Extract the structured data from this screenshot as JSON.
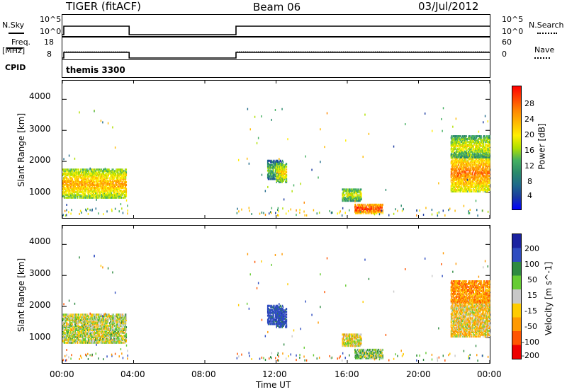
{
  "header": {
    "title": "TIGER (fitACF)",
    "beam": "Beam 06",
    "date": "03/Jul/2012"
  },
  "top_panels": {
    "nsky_label": "N.Sky",
    "nsky_ticks": [
      "10^5",
      "10^0"
    ],
    "nsearch_label": "N.Search",
    "nsearch_ticks": [
      "10^5",
      "10^0"
    ],
    "freq_label_1": "Freq.",
    "freq_label_2": "[MHz]",
    "freq_ticks": [
      "18",
      "8"
    ],
    "nave_label": "Nave",
    "nave_ticks": [
      "60",
      "0"
    ],
    "cpid_label": "CPID",
    "cpid_text": "themis 3300"
  },
  "power_panel": {
    "ylabel": "Slant Range [km]",
    "yticks": [
      "4000",
      "3000",
      "2000",
      "1000"
    ],
    "cbar_label": "Power [dB]",
    "cbar_ticks": [
      "28",
      "24",
      "20",
      "16",
      "12",
      "8",
      "4"
    ],
    "cbar_colors": [
      "#ff0000",
      "#ff4400",
      "#ff8800",
      "#ffbb00",
      "#ffee00",
      "#b0e000",
      "#44b060",
      "#2a8a6a",
      "#1f6a8a",
      "#1a3aa0",
      "#0000ff"
    ]
  },
  "velocity_panel": {
    "ylabel": "Slant Range [km]",
    "yticks": [
      "4000",
      "3000",
      "2000",
      "1000"
    ],
    "cbar_label": "Velocity [m s^-1]",
    "cbar_ticks": [
      "200",
      "100",
      "50",
      "15",
      "-15",
      "-50",
      "-100",
      "-200"
    ],
    "cbar_colors": [
      "#1a22a0",
      "#2e4cc0",
      "#2e8a40",
      "#66cc33",
      "#c8c8c8",
      "#ffcc00",
      "#ff9900",
      "#ff5500",
      "#ee0000"
    ]
  },
  "xaxis": {
    "ticks": [
      "00:00",
      "04:00",
      "08:00",
      "12:00",
      "16:00",
      "20:00",
      "00:00"
    ],
    "label": "Time UT"
  },
  "chart_data": {
    "type": "heatmap",
    "title": "TIGER (fitACF)",
    "xlabel": "Time UT",
    "ylabel": "Slant Range [km]",
    "xlim_hours": [
      0,
      24
    ],
    "ylim_km": [
      180,
      4600
    ],
    "data_gaps_hours": [
      [
        3.75,
        9.75
      ]
    ],
    "power_colorbar_dB": [
      4,
      8,
      12,
      16,
      20,
      24,
      28
    ],
    "velocity_colorbar_ms": [
      -200,
      -100,
      -50,
      -15,
      15,
      50,
      100,
      200
    ],
    "echo_regions": [
      {
        "t_start": 0.0,
        "t_end": 3.6,
        "range_km": [
          800,
          1700
        ],
        "power_dB": 18,
        "velocity_ms": 0
      },
      {
        "t_start": 11.5,
        "t_end": 12.4,
        "range_km": [
          1400,
          2000
        ],
        "power_dB": 10,
        "velocity_ms": 150
      },
      {
        "t_start": 12.0,
        "t_end": 12.6,
        "range_km": [
          1300,
          1900
        ],
        "power_dB": 16,
        "velocity_ms": 150
      },
      {
        "t_start": 15.7,
        "t_end": 16.8,
        "range_km": [
          700,
          1100
        ],
        "power_dB": 14,
        "velocity_ms": -10
      },
      {
        "t_start": 16.4,
        "t_end": 18.0,
        "range_km": [
          300,
          600
        ],
        "power_dB": 24,
        "velocity_ms": 30
      },
      {
        "t_start": 21.8,
        "t_end": 24.0,
        "range_km": [
          1000,
          2200
        ],
        "power_dB": 20,
        "velocity_ms": -30
      },
      {
        "t_start": 21.8,
        "t_end": 24.0,
        "range_km": [
          2100,
          2800
        ],
        "power_dB": 14,
        "velocity_ms": -80
      }
    ]
  }
}
